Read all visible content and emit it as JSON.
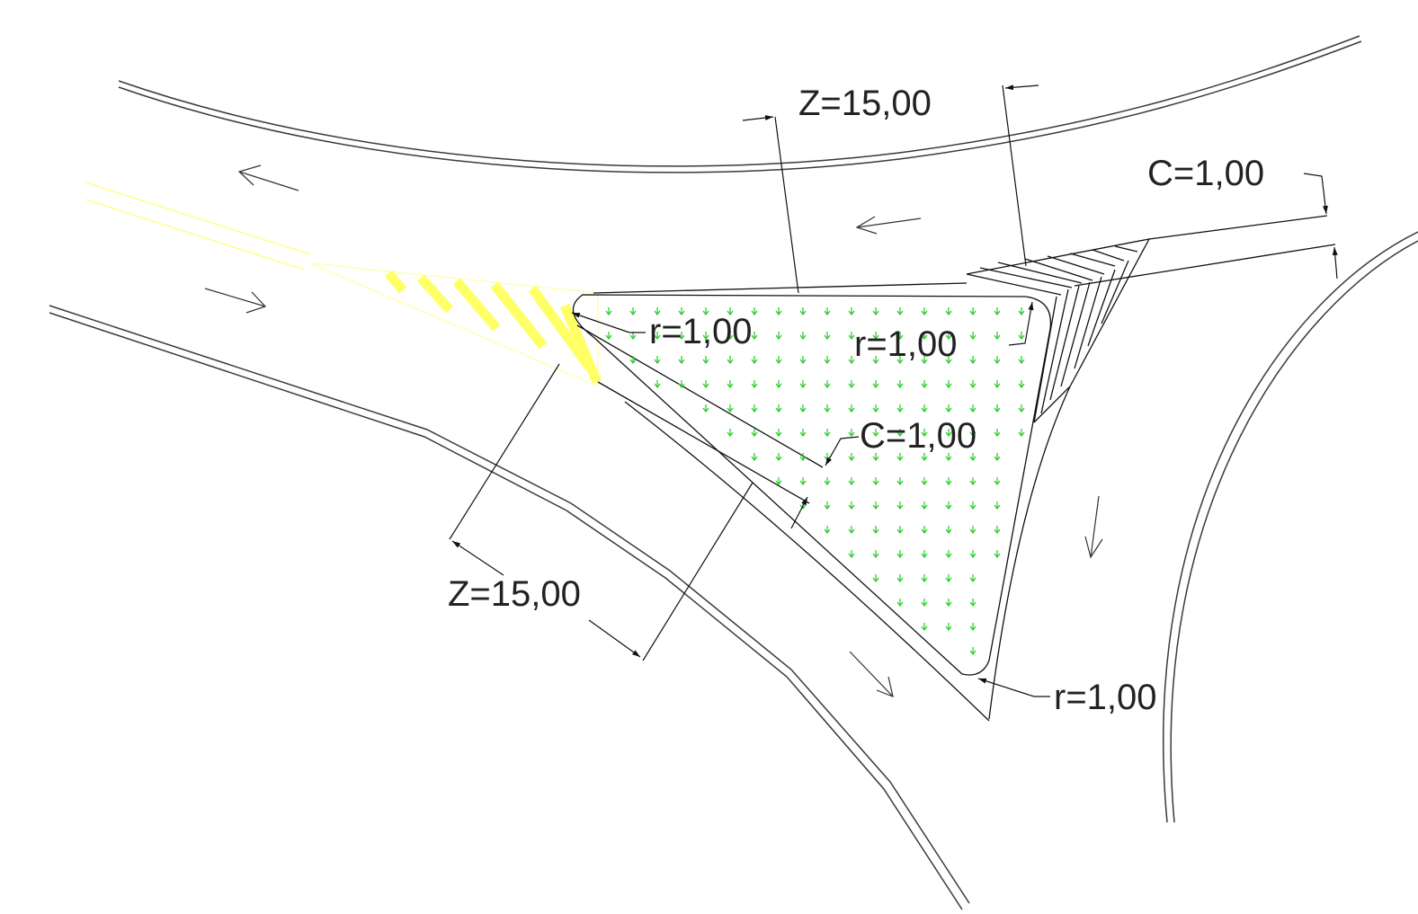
{
  "labels": {
    "z_top": "Z=15,00",
    "z_bottom": "Z=15,00",
    "c_top": "C=1,00",
    "c_mid": "C=1,00",
    "r_left": "r=1,00",
    "r_top": "r=1,00",
    "r_bottom": "r=1,00"
  },
  "colors": {
    "road_line": "#3a3a3a",
    "hatch_yellow": "#ffff66",
    "grass_symbol": "#22cc22",
    "text": "#222222"
  }
}
